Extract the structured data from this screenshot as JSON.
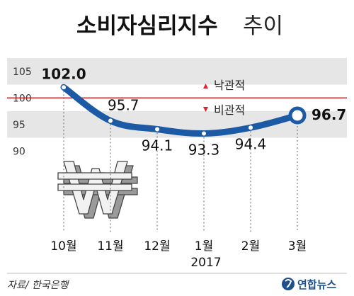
{
  "chart_data": {
    "type": "line",
    "title": "소비자심리지수",
    "title_suffix": "추이",
    "categories": [
      "10월",
      "11월",
      "12월",
      "1월",
      "2월",
      "3월"
    ],
    "values": [
      102.0,
      95.7,
      94.1,
      93.3,
      94.4,
      96.7
    ],
    "value_labels": [
      "102.0",
      "95.7",
      "94.1",
      "93.3",
      "94.4",
      "96.7"
    ],
    "year_label": "2017",
    "y_ticks": [
      "105",
      "100",
      "95",
      "90"
    ],
    "ylim": [
      87.5,
      107.5
    ],
    "reference_value": 100,
    "legend": {
      "optimistic": "낙관적",
      "pessimistic": "비관적"
    },
    "line_color": "#1d5aa6",
    "reference_color": "#d9262c",
    "band_color": "#e6e6e6",
    "arrow_up_color": "#d9262c",
    "arrow_down_color": "#d9262c"
  },
  "source": "자료/ 한국은행",
  "logo": "연합뉴스",
  "icons": {
    "currency": "won-symbol-icon",
    "logo": "yonhap-logo-icon"
  }
}
